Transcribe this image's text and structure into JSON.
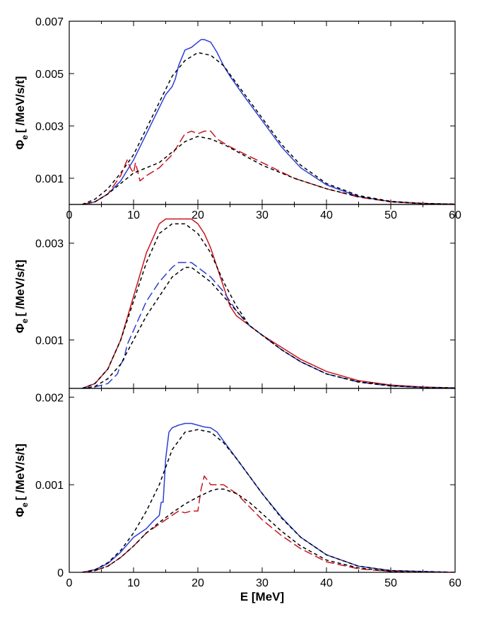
{
  "figure": {
    "xlabel": "E [MeV]",
    "ylabel": {
      "symbol": "Φ",
      "sub": "e",
      "unit": "[ /MeV/s/t]"
    }
  },
  "chart_data": [
    {
      "type": "line",
      "panel": "top",
      "xlim": [
        0,
        60
      ],
      "ylim": [
        0,
        0.007
      ],
      "xticks": [
        "0",
        "10",
        "20",
        "30",
        "40",
        "50",
        "60"
      ],
      "yticks": [
        0.001,
        0.003,
        0.005,
        0.007
      ],
      "ytick_labels": [
        "0.001",
        "0.003",
        "0.005",
        "0.007"
      ],
      "series": [
        {
          "color": "#2b3fd6",
          "style": "solid",
          "x": [
            2,
            4,
            6,
            8,
            10,
            12,
            14,
            15,
            16,
            16.5,
            17,
            18,
            19,
            20,
            20.5,
            21,
            22,
            23,
            24,
            25,
            27,
            30,
            33,
            36,
            40,
            45,
            50,
            55,
            60
          ],
          "y": [
            0,
            0.0001,
            0.0004,
            0.0009,
            0.0017,
            0.0027,
            0.0037,
            0.0042,
            0.0045,
            0.0048,
            0.0053,
            0.0059,
            0.006,
            0.0062,
            0.0063,
            0.0063,
            0.0062,
            0.0058,
            0.0053,
            0.0049,
            0.0042,
            0.0032,
            0.0022,
            0.0014,
            0.00075,
            0.0003,
            0.00011,
            4e-05,
            1e-05
          ]
        },
        {
          "color": "#000000",
          "style": "dashed",
          "x": [
            2,
            4,
            6,
            8,
            10,
            12,
            14,
            16,
            18,
            20,
            22,
            24,
            27,
            30,
            33,
            36,
            40,
            45,
            50,
            55,
            60
          ],
          "y": [
            0,
            0.0002,
            0.0006,
            0.0012,
            0.0019,
            0.0029,
            0.0039,
            0.0049,
            0.0055,
            0.0058,
            0.0057,
            0.0053,
            0.0043,
            0.0033,
            0.0023,
            0.0015,
            0.0008,
            0.00034,
            0.00012,
            4e-05,
            1e-05
          ]
        },
        {
          "color": "#c8141e",
          "style": "dashed-long",
          "x": [
            2,
            4,
            6,
            8,
            9,
            9.5,
            10,
            10.3,
            10.6,
            11,
            12,
            14,
            16,
            17,
            18,
            19,
            20,
            21,
            22,
            23,
            25,
            30,
            35,
            40,
            45,
            50,
            55,
            60
          ],
          "y": [
            0,
            0.0001,
            0.0004,
            0.0011,
            0.0017,
            0.0014,
            0.0012,
            0.0016,
            0.0013,
            0.0009,
            0.0011,
            0.0014,
            0.0019,
            0.0023,
            0.0027,
            0.0028,
            0.0027,
            0.0028,
            0.0028,
            0.0025,
            0.0022,
            0.0016,
            0.001,
            0.0006,
            0.00028,
            0.0001,
            3e-05,
            1e-05
          ]
        },
        {
          "color": "#000000",
          "style": "dashed",
          "x": [
            2,
            4,
            6,
            8,
            10,
            12,
            14,
            16,
            18,
            20,
            22,
            24,
            27,
            30,
            35,
            40,
            45,
            50,
            55,
            60
          ],
          "y": [
            0,
            0.0001,
            0.0004,
            0.0008,
            0.0012,
            0.0014,
            0.0016,
            0.002,
            0.0024,
            0.0026,
            0.0025,
            0.0023,
            0.0019,
            0.0015,
            0.001,
            0.0006,
            0.0003,
            0.0001,
            3e-05,
            1e-05
          ]
        }
      ]
    },
    {
      "type": "line",
      "panel": "middle",
      "xlim": [
        0,
        60
      ],
      "ylim": [
        0,
        0.0038
      ],
      "xticks": [],
      "yticks": [
        0.001,
        0.003
      ],
      "ytick_labels": [
        "0.001",
        "0.003"
      ],
      "series": [
        {
          "color": "#c8141e",
          "style": "solid",
          "x": [
            2,
            4,
            6,
            8,
            10,
            12,
            14,
            15,
            16,
            17,
            18,
            19,
            20,
            21,
            22,
            23,
            24,
            25,
            26,
            27,
            28,
            30,
            33,
            36,
            40,
            45,
            50,
            55,
            60
          ],
          "y": [
            0,
            0.0001,
            0.0004,
            0.001,
            0.0019,
            0.0028,
            0.0034,
            0.0035,
            0.0035,
            0.0035,
            0.0035,
            0.0035,
            0.0034,
            0.0032,
            0.0029,
            0.0025,
            0.0021,
            0.0017,
            0.0015,
            0.0014,
            0.0013,
            0.0011,
            0.00085,
            0.0006,
            0.00035,
            0.00016,
            7e-05,
            3e-05,
            1e-05
          ]
        },
        {
          "color": "#000000",
          "style": "dashed",
          "x": [
            2,
            4,
            6,
            8,
            10,
            12,
            14,
            16,
            17,
            18,
            19,
            20,
            22,
            24,
            26,
            28,
            30,
            33,
            36,
            40,
            45,
            50,
            55,
            60
          ],
          "y": [
            0,
            0.0001,
            0.0004,
            0.001,
            0.0018,
            0.0026,
            0.0032,
            0.0034,
            0.0034,
            0.0034,
            0.0033,
            0.0032,
            0.0028,
            0.0022,
            0.0017,
            0.0013,
            0.0011,
            0.0008,
            0.00055,
            0.0003,
            0.00014,
            6e-05,
            2e-05,
            1e-05
          ]
        },
        {
          "color": "#2b3fd6",
          "style": "dashed-long",
          "x": [
            2,
            4,
            6,
            7.5,
            8,
            8.5,
            9,
            10,
            12,
            14,
            16,
            17,
            18,
            19,
            20,
            22,
            24,
            26,
            28,
            30,
            33,
            36,
            40,
            45,
            50,
            55,
            60
          ],
          "y": [
            0,
            3e-05,
            0.0001,
            0.0003,
            0.0005,
            0.0006,
            0.0009,
            0.0012,
            0.0018,
            0.0022,
            0.0025,
            0.0026,
            0.0026,
            0.0026,
            0.0025,
            0.0023,
            0.002,
            0.0016,
            0.0013,
            0.0011,
            0.0008,
            0.00055,
            0.0003,
            0.00013,
            5e-05,
            2e-05,
            1e-05
          ]
        },
        {
          "color": "#000000",
          "style": "dashed",
          "x": [
            2,
            4,
            6,
            8,
            10,
            12,
            14,
            16,
            17,
            18,
            19,
            20,
            22,
            24,
            26,
            28,
            30,
            33,
            36,
            40,
            45,
            50,
            55,
            60
          ],
          "y": [
            0,
            4e-05,
            0.0002,
            0.0005,
            0.001,
            0.0015,
            0.0019,
            0.0023,
            0.0024,
            0.0025,
            0.0025,
            0.0024,
            0.0022,
            0.0019,
            0.0016,
            0.0013,
            0.0011,
            0.0008,
            0.00055,
            0.0003,
            0.00013,
            5e-05,
            2e-05,
            1e-05
          ]
        }
      ]
    },
    {
      "type": "line",
      "panel": "bottom",
      "xlim": [
        0,
        60
      ],
      "ylim": [
        0,
        0.0021
      ],
      "xticks": [
        "0",
        "10",
        "20",
        "30",
        "40",
        "50",
        "60"
      ],
      "yticks": [
        0,
        0.001,
        0.002
      ],
      "ytick_labels": [
        "0",
        "0.001",
        "0.002"
      ],
      "series": [
        {
          "color": "#2b3fd6",
          "style": "solid",
          "x": [
            2,
            4,
            6,
            8,
            10,
            12,
            13,
            14,
            14.3,
            14.6,
            15,
            15.5,
            16,
            17,
            18,
            19,
            20,
            21,
            22,
            23,
            24,
            26,
            28,
            30,
            33,
            36,
            40,
            45,
            50,
            55,
            60
          ],
          "y": [
            0,
            3e-05,
            0.0001,
            0.00023,
            0.0004,
            0.0005,
            0.00058,
            0.00065,
            0.0008,
            0.0008,
            0.0013,
            0.0016,
            0.00165,
            0.00168,
            0.0017,
            0.0017,
            0.00168,
            0.00166,
            0.00165,
            0.0016,
            0.0015,
            0.0013,
            0.0011,
            0.0009,
            0.00063,
            0.0004,
            0.0002,
            7e-05,
            2e-05,
            1e-05,
            0
          ]
        },
        {
          "color": "#000000",
          "style": "dashed",
          "x": [
            2,
            4,
            6,
            8,
            10,
            12,
            14,
            16,
            18,
            20,
            22,
            24,
            26,
            28,
            30,
            33,
            36,
            40,
            45,
            50,
            55,
            60
          ],
          "y": [
            0,
            3e-05,
            0.00011,
            0.00025,
            0.00045,
            0.0007,
            0.001,
            0.0014,
            0.0016,
            0.00163,
            0.0016,
            0.00148,
            0.0013,
            0.0011,
            0.0009,
            0.00062,
            0.0004,
            0.0002,
            7e-05,
            2e-05,
            1e-05,
            0
          ]
        },
        {
          "color": "#c8141e",
          "style": "dashed-long",
          "x": [
            2,
            4,
            6,
            8,
            10,
            12,
            14,
            16,
            17,
            18,
            19,
            20,
            20.5,
            21,
            21.5,
            22,
            23,
            24,
            25,
            26,
            28,
            30,
            33,
            36,
            40,
            45,
            50,
            55,
            60
          ],
          "y": [
            0,
            2e-05,
            7e-05,
            0.00017,
            0.0003,
            0.00045,
            0.00055,
            0.00065,
            0.0007,
            0.00068,
            0.0007,
            0.0007,
            0.00095,
            0.0011,
            0.00105,
            0.001,
            0.001,
            0.001,
            0.00095,
            0.0009,
            0.00075,
            0.0006,
            0.00042,
            0.00027,
            0.00012,
            4e-05,
            1e-05,
            0,
            0
          ]
        },
        {
          "color": "#000000",
          "style": "dashed",
          "x": [
            2,
            4,
            6,
            8,
            10,
            12,
            14,
            16,
            18,
            20,
            22,
            23,
            24,
            26,
            28,
            30,
            33,
            36,
            40,
            45,
            50,
            55,
            60
          ],
          "y": [
            0,
            2e-05,
            7e-05,
            0.00017,
            0.0003,
            0.00045,
            0.00057,
            0.00068,
            0.00078,
            0.00086,
            0.00093,
            0.00095,
            0.00095,
            0.0009,
            0.0008,
            0.00067,
            0.00047,
            0.0003,
            0.00014,
            5e-05,
            1e-05,
            0,
            0
          ]
        }
      ]
    }
  ]
}
